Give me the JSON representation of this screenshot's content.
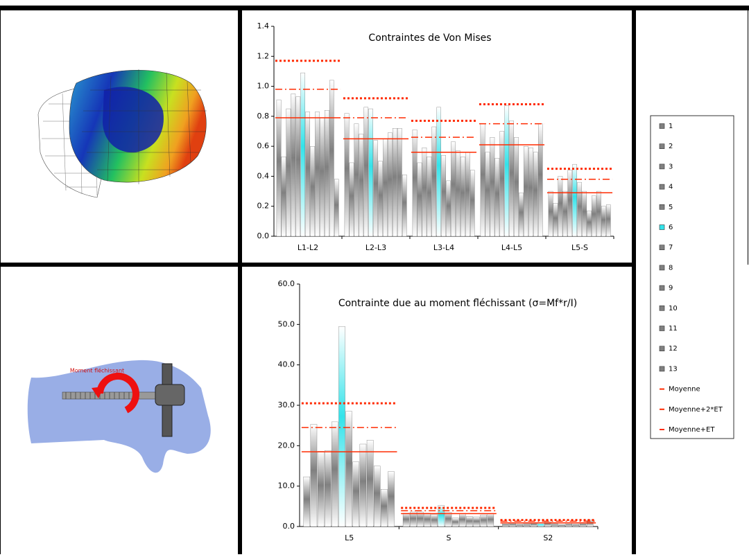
{
  "chart_data": [
    {
      "type": "bar",
      "title": "Contraintes de Von Mises",
      "categories": [
        "L1-L2",
        "L2-L3",
        "L3-L4",
        "L4-L5",
        "L5-S"
      ],
      "ylim": [
        0,
        1.4
      ],
      "yticks": [
        {
          "value": 0,
          "label": "0.0"
        },
        0.2,
        0.4,
        0.6,
        0.8,
        {
          "value": 1,
          "label": "1.0"
        },
        1.2,
        1.4
      ],
      "series": [
        {
          "name": "1",
          "color": "#808080",
          "values": [
            0.91,
            0.82,
            0.71,
            0.75,
            0.3
          ]
        },
        {
          "name": "2",
          "color": "#808080",
          "values": [
            0.53,
            0.49,
            0.49,
            0.56,
            0.22
          ]
        },
        {
          "name": "3",
          "color": "#808080",
          "values": [
            0.85,
            0.75,
            0.59,
            0.66,
            0.4
          ]
        },
        {
          "name": "4",
          "color": "#808080",
          "values": [
            0.95,
            0.68,
            0.53,
            0.52,
            0.3
          ]
        },
        {
          "name": "5",
          "color": "#808080",
          "values": [
            0.93,
            0.86,
            0.73,
            0.7,
            0.44
          ]
        },
        {
          "name": "6",
          "color": "#33e3ea",
          "values": [
            1.09,
            0.85,
            0.86,
            0.87,
            0.48
          ]
        },
        {
          "name": "7",
          "color": "#808080",
          "values": [
            0.83,
            0.64,
            0.54,
            0.77,
            0.36
          ]
        },
        {
          "name": "8",
          "color": "#808080",
          "values": [
            0.6,
            0.5,
            0.37,
            0.66,
            0.3
          ]
        },
        {
          "name": "9",
          "color": "#808080",
          "values": [
            0.83,
            0.65,
            0.63,
            0.29,
            0.17
          ]
        },
        {
          "name": "10",
          "color": "#808080",
          "values": [
            0.79,
            0.69,
            0.57,
            0.6,
            0.27
          ]
        },
        {
          "name": "11",
          "color": "#808080",
          "values": [
            0.84,
            0.72,
            0.53,
            0.59,
            0.3
          ]
        },
        {
          "name": "12",
          "color": "#808080",
          "values": [
            1.04,
            0.72,
            0.56,
            0.56,
            0.2
          ]
        },
        {
          "name": "13",
          "color": "#808080",
          "values": [
            0.38,
            0.41,
            0.44,
            0.75,
            0.21
          ]
        },
        {
          "name": "Moyenne",
          "color": "#ff2a00",
          "style": "solid",
          "values": [
            0.79,
            0.65,
            0.56,
            0.61,
            0.29
          ]
        },
        {
          "name": "Moyenne+2*ET",
          "color": "#ff2a00",
          "style": "dotted",
          "values": [
            1.17,
            0.92,
            0.77,
            0.88,
            0.45
          ]
        },
        {
          "name": "Moyenne+ET",
          "color": "#ff2a00",
          "style": "dashdot",
          "values": [
            0.98,
            0.79,
            0.66,
            0.75,
            0.38
          ]
        }
      ]
    },
    {
      "type": "bar",
      "title": "Contrainte due au moment fléchissant (σ=Mf*r/I)",
      "categories": [
        "L5",
        "S",
        "S2"
      ],
      "ylim": [
        0,
        60
      ],
      "yticks": [
        {
          "value": 0,
          "label": "0.0"
        },
        {
          "value": 10,
          "label": "10.0"
        },
        {
          "value": 20,
          "label": "20.0"
        },
        {
          "value": 30,
          "label": "30.0"
        },
        {
          "value": 40,
          "label": "40.0"
        },
        {
          "value": 50,
          "label": "50.0"
        },
        {
          "value": 60,
          "label": "60.0"
        }
      ],
      "series": [
        {
          "color": "#808080",
          "values": [
            12.3,
            3.3,
            0.8
          ]
        },
        {
          "color": "#808080",
          "values": [
            25.3,
            3.6,
            0.9
          ]
        },
        {
          "color": "#808080",
          "values": [
            18.6,
            3.6,
            0.6
          ]
        },
        {
          "color": "#808080",
          "values": [
            18.8,
            3.3,
            0.7
          ]
        },
        {
          "color": "#808080",
          "values": [
            25.9,
            3.0,
            1.0
          ]
        },
        {
          "color": "#33e3ea",
          "values": [
            49.5,
            5.2,
            0.8
          ]
        },
        {
          "color": "#808080",
          "values": [
            28.5,
            3.5,
            1.2
          ]
        },
        {
          "color": "#808080",
          "values": [
            16.0,
            2.1,
            0.7
          ]
        },
        {
          "color": "#808080",
          "values": [
            20.4,
            3.2,
            0.5
          ]
        },
        {
          "color": "#808080",
          "values": [
            21.4,
            2.5,
            0.8
          ]
        },
        {
          "color": "#808080",
          "values": [
            15.0,
            2.4,
            0.6
          ]
        },
        {
          "color": "#808080",
          "values": [
            9.2,
            2.9,
            0.9
          ]
        },
        {
          "color": "#808080",
          "values": [
            13.6,
            3.2,
            1.6
          ]
        },
        {
          "color": "#ff2a00",
          "style": "solid",
          "values": [
            18.5,
            3.2,
            0.9
          ]
        },
        {
          "color": "#ff2a00",
          "style": "dotted",
          "values": [
            30.5,
            4.6,
            1.6
          ]
        },
        {
          "color": "#ff2a00",
          "style": "dashdot",
          "values": [
            24.5,
            3.9,
            1.3
          ]
        }
      ]
    }
  ],
  "annotations": {
    "moment_label": "Moment fléchissant"
  }
}
